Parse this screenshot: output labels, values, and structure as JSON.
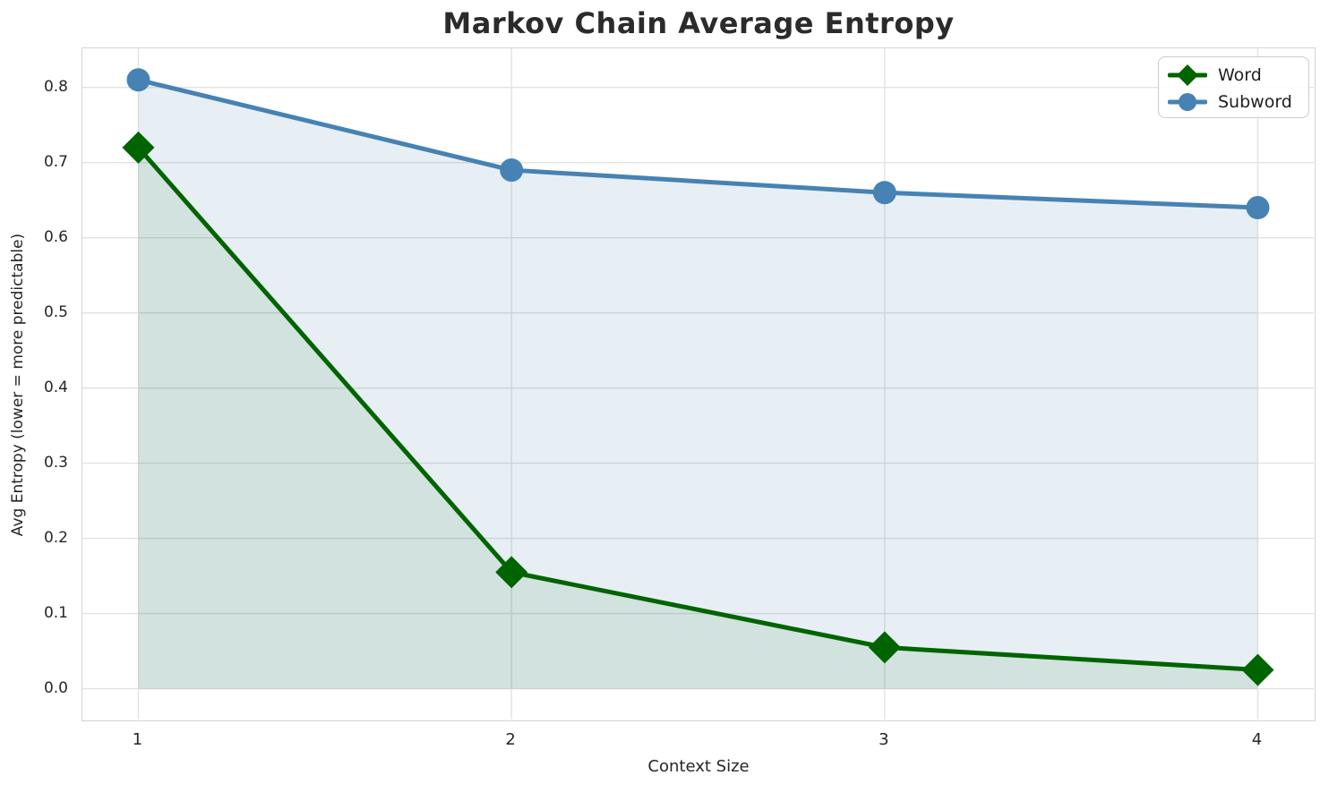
{
  "title": "Markov Chain Average Entropy",
  "chart_data": {
    "type": "line",
    "x": [
      1,
      2,
      3,
      4
    ],
    "series": [
      {
        "name": "Word",
        "values": [
          0.72,
          0.155,
          0.055,
          0.025
        ],
        "color": "#006400",
        "marker": "diamond",
        "fill_alpha": 0.09
      },
      {
        "name": "Subword",
        "values": [
          0.81,
          0.69,
          0.66,
          0.64
        ],
        "color": "#4682b4",
        "marker": "circle",
        "fill_alpha": 0.13
      }
    ],
    "title": "Markov Chain Average Entropy",
    "xlabel": "Context Size",
    "ylabel": "Avg Entropy (lower = more predictable)",
    "xticks": [
      "1",
      "2",
      "3",
      "4"
    ],
    "yticks": [
      "0.0",
      "0.1",
      "0.2",
      "0.3",
      "0.4",
      "0.5",
      "0.6",
      "0.7",
      "0.8"
    ],
    "xlim": [
      0.85,
      4.15
    ],
    "ylim": [
      -0.041,
      0.852
    ],
    "grid": true,
    "grid_color": "#e2e2e2",
    "fill_baseline": 0,
    "legend_position": "upper right",
    "legend_entries": [
      "Word",
      "Subword"
    ]
  }
}
